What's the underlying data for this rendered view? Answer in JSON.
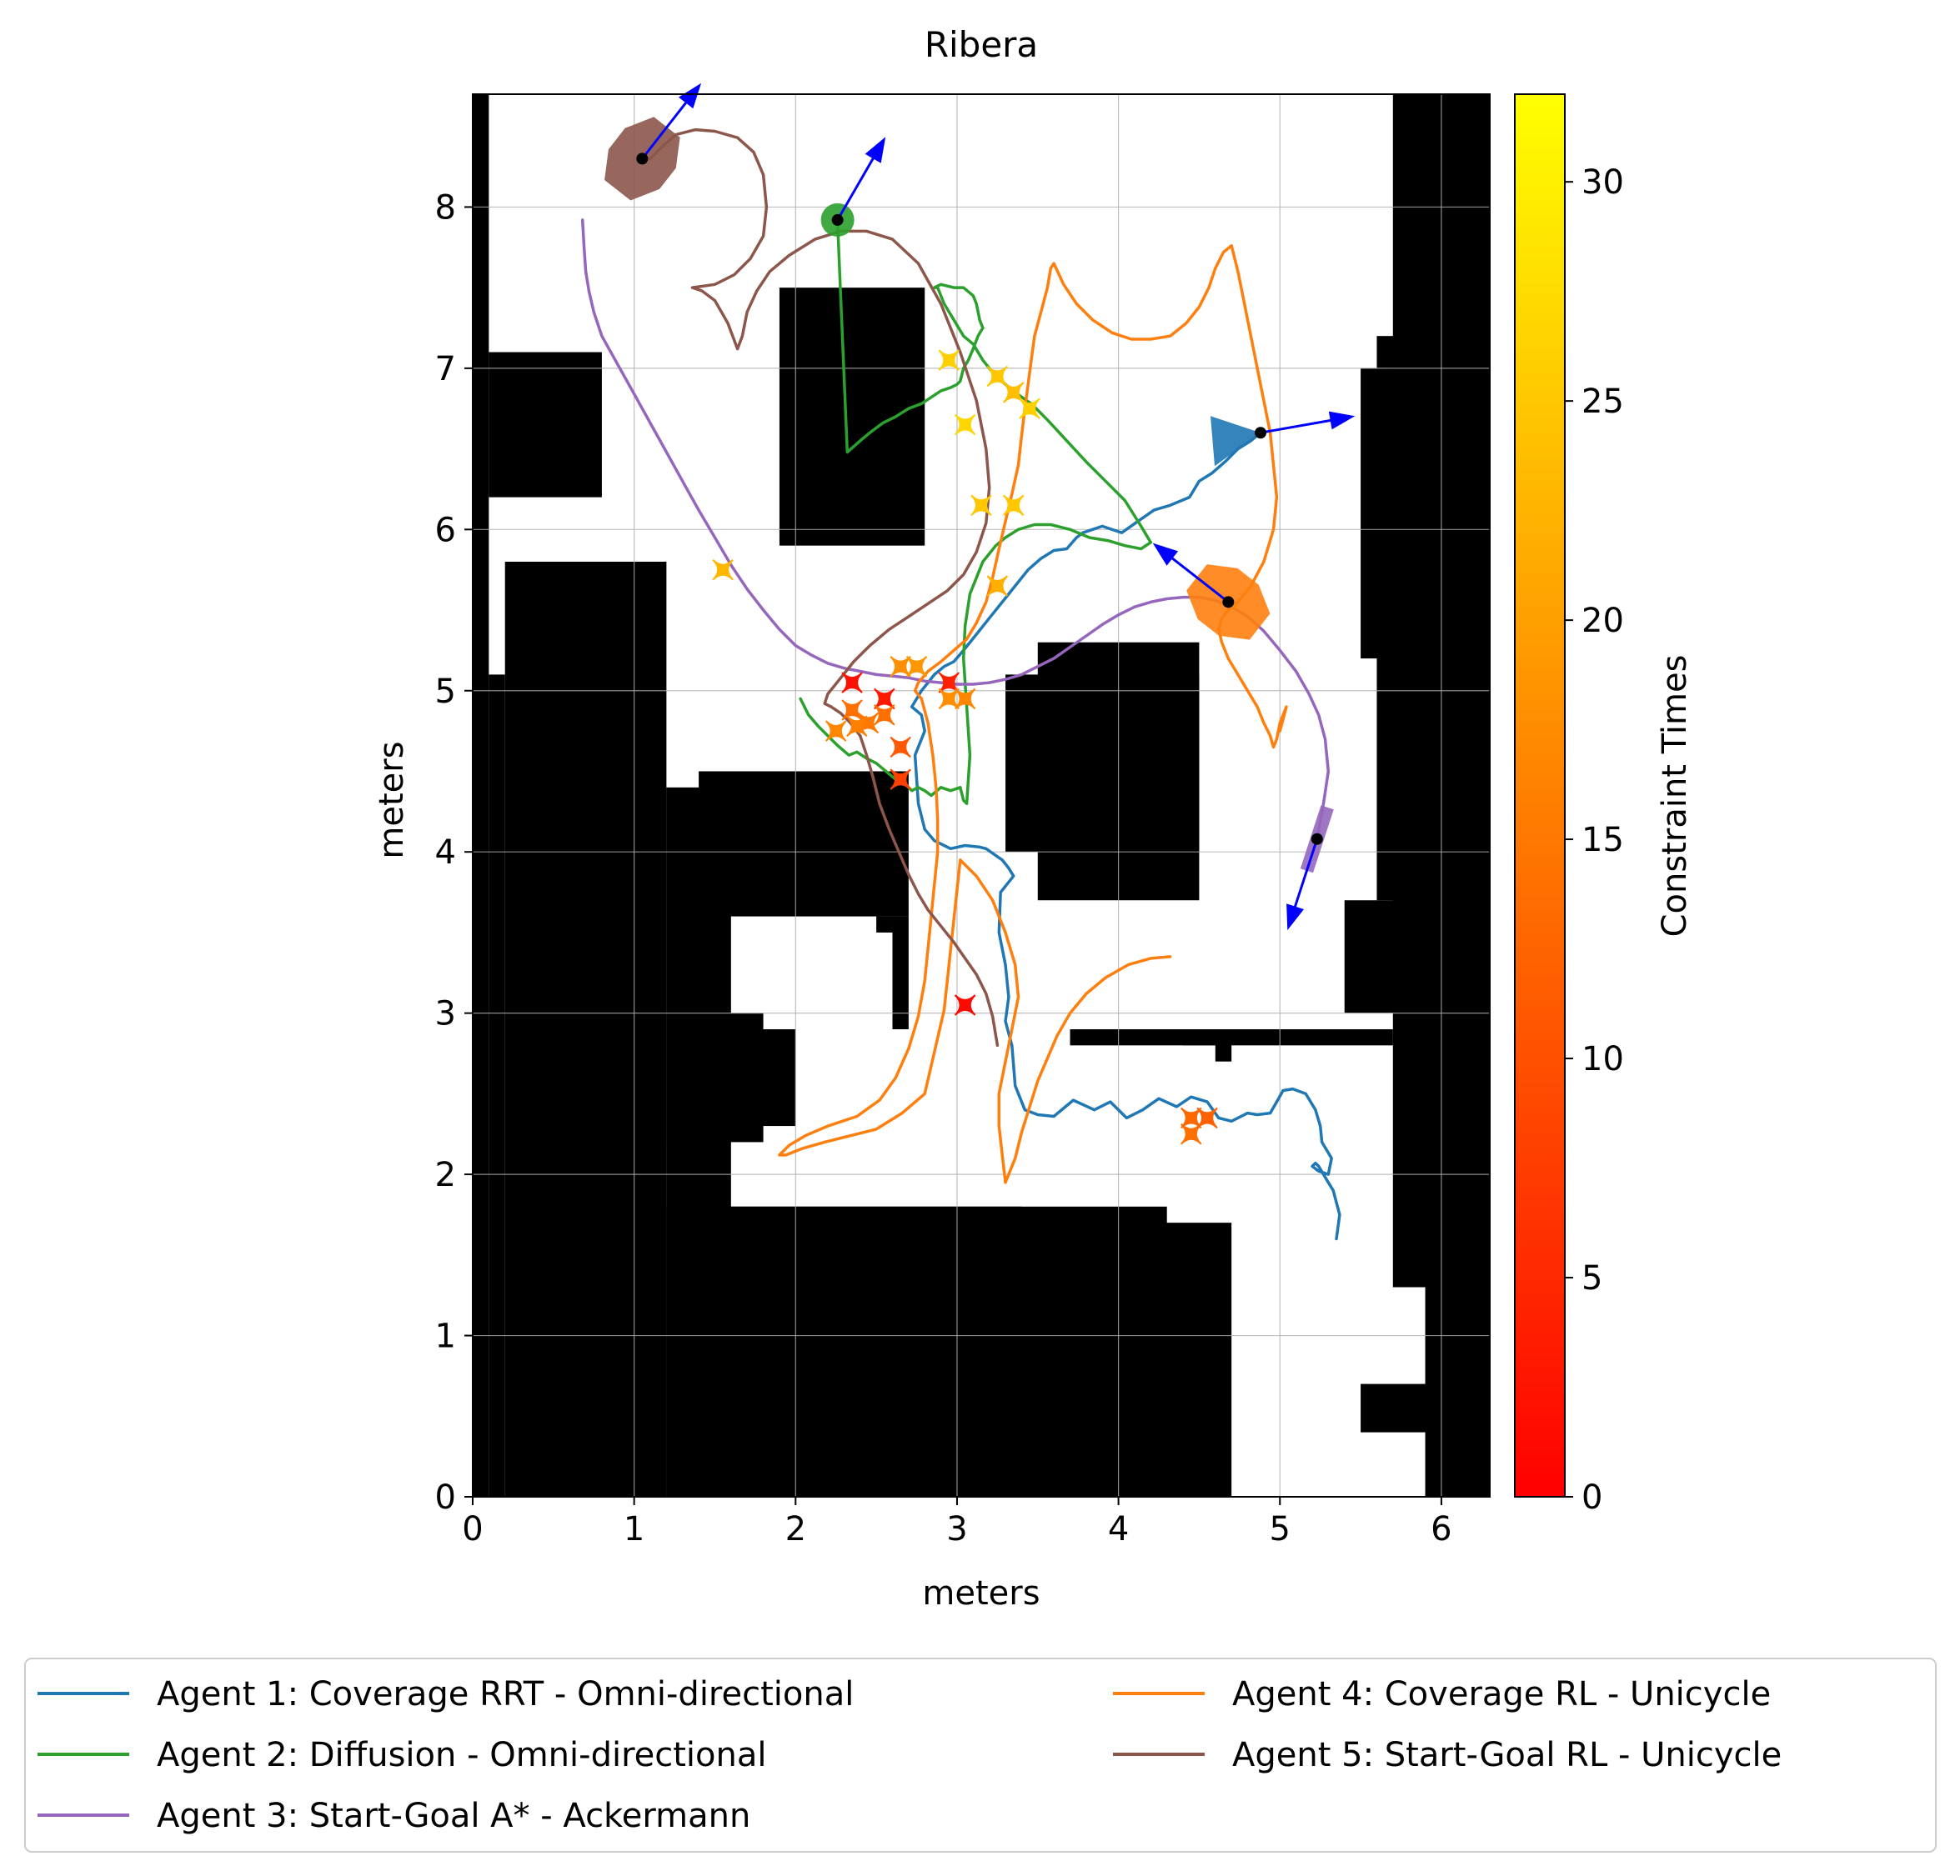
{
  "chart_data": {
    "type": "line",
    "title": "Ribera",
    "xlabel": "meters",
    "ylabel": "meters",
    "xlim": [
      0,
      6.3
    ],
    "ylim": [
      0,
      8.7
    ],
    "xticks": [
      0,
      1,
      2,
      3,
      4,
      5,
      6
    ],
    "yticks": [
      0,
      1,
      2,
      3,
      4,
      5,
      6,
      7,
      8
    ],
    "grid": true,
    "legend_position": "bottom",
    "colorbar": {
      "label": "Constraint Times",
      "range": [
        0,
        32
      ],
      "ticks": [
        0,
        5,
        10,
        15,
        20,
        25,
        30
      ],
      "colors": [
        "#ff0000",
        "#ff8000",
        "#ffff00"
      ]
    },
    "obstacles": [
      [
        0,
        0,
        0.1,
        8.7
      ],
      [
        0.1,
        6.2,
        0.7,
        0.9
      ],
      [
        0.2,
        0,
        1.0,
        5.8
      ],
      [
        0.1,
        0,
        0.1,
        5.1
      ],
      [
        1.2,
        0,
        0.4,
        4.4
      ],
      [
        1.4,
        3.6,
        1.3,
        0.9
      ],
      [
        2.6,
        2.9,
        0.1,
        0.7
      ],
      [
        2.5,
        3.5,
        0.1,
        0.1
      ],
      [
        1.2,
        2.2,
        0.6,
        0.8
      ],
      [
        1.7,
        2.3,
        0.3,
        0.6
      ],
      [
        1.2,
        0,
        2.2,
        1.8
      ],
      [
        1.2,
        0,
        3.1,
        1.8
      ],
      [
        2.9,
        0.2,
        0.2,
        1.4
      ],
      [
        1.9,
        5.9,
        0.9,
        1.6
      ],
      [
        3.3,
        4.0,
        1.2,
        1.1
      ],
      [
        3.5,
        3.7,
        1.0,
        1.6
      ],
      [
        3.8,
        0,
        0.9,
        1.7
      ],
      [
        3.4,
        0,
        1.0,
        0.1
      ],
      [
        3.7,
        2.8,
        0.9,
        0.1
      ],
      [
        4.6,
        2.7,
        0.1,
        0.2
      ],
      [
        4.4,
        2.8,
        1.3,
        0.1
      ],
      [
        5.7,
        1.3,
        0.6,
        7.4
      ],
      [
        5.9,
        0,
        0.4,
        2.0
      ],
      [
        5.5,
        0.4,
        0.5,
        0.3
      ],
      [
        5.4,
        3.0,
        0.4,
        0.7
      ],
      [
        5.6,
        3.7,
        0.3,
        1.8
      ],
      [
        5.5,
        5.2,
        0.4,
        1.8
      ],
      [
        5.6,
        6.1,
        0.3,
        0.7
      ],
      [
        5.8,
        6.8,
        0.3,
        1.6
      ],
      [
        5.8,
        7.3,
        0.5,
        1.4
      ],
      [
        5.6,
        7.0,
        0.4,
        0.2
      ],
      [
        5.9,
        8.4,
        0.4,
        0.3
      ]
    ],
    "series": [
      {
        "name": "Agent 1: Coverage RRT - Omni-directional",
        "color": "#1f77b4",
        "x": [
          5.35,
          5.37,
          5.33,
          5.3,
          5.24,
          5.22,
          5.2,
          5.24,
          5.3,
          5.32,
          5.26,
          5.25,
          5.22,
          5.16,
          5.08,
          5.02,
          4.98,
          4.94,
          4.86,
          4.8,
          4.7,
          4.62,
          4.55,
          4.45,
          4.36,
          4.25,
          4.15,
          4.05,
          3.95,
          3.85,
          3.72,
          3.6,
          3.5,
          3.42,
          3.36,
          3.34,
          3.3,
          3.32,
          3.3,
          3.26,
          3.27,
          3.35,
          3.32,
          3.28,
          3.18,
          3.14,
          3.05,
          2.96,
          2.86,
          2.8,
          2.76,
          2.74,
          2.8,
          2.78,
          2.72,
          2.78,
          2.82,
          2.86,
          2.92,
          2.98,
          3.04,
          3.12,
          3.2,
          3.28,
          3.36,
          3.44,
          3.52,
          3.6,
          3.68,
          3.74,
          3.78,
          3.9,
          4.02,
          4.12,
          4.22,
          4.32,
          4.44,
          4.5,
          4.58,
          4.66,
          4.74,
          4.82,
          4.88
        ],
        "y": [
          1.6,
          1.75,
          1.9,
          1.95,
          2.05,
          2.07,
          2.05,
          2.02,
          2.0,
          2.1,
          2.2,
          2.3,
          2.4,
          2.5,
          2.53,
          2.52,
          2.45,
          2.38,
          2.37,
          2.38,
          2.33,
          2.35,
          2.45,
          2.48,
          2.42,
          2.47,
          2.4,
          2.35,
          2.45,
          2.4,
          2.46,
          2.36,
          2.37,
          2.4,
          2.55,
          2.8,
          2.95,
          3.1,
          3.3,
          3.5,
          3.75,
          3.85,
          3.9,
          3.95,
          4.02,
          4.03,
          4.04,
          4.02,
          4.07,
          4.14,
          4.3,
          4.6,
          4.75,
          4.85,
          4.9,
          5.0,
          5.05,
          5.1,
          5.15,
          5.18,
          5.25,
          5.35,
          5.45,
          5.55,
          5.65,
          5.75,
          5.82,
          5.87,
          5.88,
          5.95,
          5.98,
          6.02,
          5.98,
          6.05,
          6.12,
          6.15,
          6.2,
          6.3,
          6.35,
          6.42,
          6.5,
          6.55,
          6.6
        ]
      },
      {
        "name": "Agent 2: Diffusion - Omni-directional",
        "color": "#2ca02c",
        "x": [
          2.03,
          2.08,
          2.14,
          2.2,
          2.26,
          2.33,
          2.38,
          2.44,
          2.5,
          2.56,
          2.62,
          2.68,
          2.72,
          2.76,
          2.8,
          2.84,
          2.9,
          2.96,
          3.02,
          3.04,
          3.06,
          3.08,
          3.06,
          3.04,
          3.05,
          3.08,
          3.12,
          3.16,
          3.2,
          3.24,
          3.3,
          3.38,
          3.48,
          3.58,
          3.7,
          3.82,
          3.94,
          4.04,
          4.14,
          4.2,
          4.14,
          4.04,
          3.92,
          3.8,
          3.68,
          3.56,
          3.46,
          3.36,
          3.3,
          3.24,
          3.16,
          3.1,
          3.04,
          2.98,
          2.92,
          2.88,
          2.86,
          2.9,
          2.98,
          3.04,
          3.1,
          3.12,
          3.14,
          3.16,
          3.13,
          3.1,
          3.07,
          3.04,
          3.02,
          3.0,
          2.96,
          2.9,
          2.84,
          2.78,
          2.7,
          2.62,
          2.54,
          2.46,
          2.4,
          2.32,
          2.26
        ],
        "y": [
          4.95,
          4.85,
          4.78,
          4.72,
          4.66,
          4.6,
          4.62,
          4.58,
          4.55,
          4.5,
          4.45,
          4.42,
          4.38,
          4.4,
          4.38,
          4.35,
          4.4,
          4.38,
          4.4,
          4.32,
          4.3,
          4.6,
          4.9,
          5.2,
          5.4,
          5.6,
          5.7,
          5.8,
          5.85,
          5.9,
          5.95,
          6.0,
          6.03,
          6.03,
          6.0,
          5.95,
          5.93,
          5.9,
          5.88,
          5.92,
          6.02,
          6.18,
          6.3,
          6.42,
          6.55,
          6.68,
          6.78,
          6.85,
          6.9,
          6.95,
          7.05,
          7.15,
          7.2,
          7.3,
          7.4,
          7.5,
          7.5,
          7.52,
          7.5,
          7.5,
          7.45,
          7.4,
          7.3,
          7.25,
          7.2,
          7.12,
          7.05,
          7.0,
          6.92,
          6.9,
          6.88,
          6.86,
          6.82,
          6.78,
          6.75,
          6.7,
          6.66,
          6.6,
          6.55,
          6.48,
          7.9
        ]
      },
      {
        "name": "Agent 3: Start-Goal A* - Ackermann",
        "color": "#9467bd",
        "x": [
          5.23,
          5.27,
          5.3,
          5.28,
          5.24,
          5.18,
          5.1,
          5.0,
          4.9,
          4.8,
          4.7,
          4.6,
          4.5,
          4.4,
          4.3,
          4.2,
          4.1,
          4.0,
          3.9,
          3.8,
          3.7,
          3.6,
          3.5,
          3.4,
          3.3,
          3.2,
          3.1,
          3.0,
          2.9,
          2.8,
          2.7,
          2.6,
          2.5,
          2.4,
          2.3,
          2.2,
          2.1,
          2.0,
          1.9,
          1.8,
          1.7,
          1.6,
          1.5,
          1.4,
          1.3,
          1.2,
          1.1,
          1.0,
          0.9,
          0.8,
          0.75,
          0.72,
          0.7,
          0.69,
          0.68
        ],
        "y": [
          4.08,
          4.3,
          4.5,
          4.7,
          4.85,
          4.98,
          5.12,
          5.25,
          5.37,
          5.46,
          5.52,
          5.56,
          5.58,
          5.58,
          5.57,
          5.55,
          5.52,
          5.47,
          5.41,
          5.34,
          5.27,
          5.2,
          5.15,
          5.1,
          5.07,
          5.05,
          5.04,
          5.04,
          5.05,
          5.06,
          5.08,
          5.09,
          5.1,
          5.12,
          5.14,
          5.17,
          5.22,
          5.28,
          5.38,
          5.5,
          5.63,
          5.78,
          5.95,
          6.12,
          6.3,
          6.48,
          6.66,
          6.84,
          7.02,
          7.2,
          7.35,
          7.48,
          7.6,
          7.75,
          7.92
        ]
      },
      {
        "name": "Agent 4: Coverage RL - Unicycle",
        "color": "#ff7f0e",
        "x": [
          4.32,
          4.2,
          4.06,
          3.92,
          3.8,
          3.7,
          3.62,
          3.56,
          3.5,
          3.45,
          3.4,
          3.36,
          3.3,
          3.28,
          3.26,
          3.26,
          3.3,
          3.34,
          3.38,
          3.36,
          3.3,
          3.22,
          3.12,
          3.02,
          2.92,
          2.8,
          2.66,
          2.5,
          2.34,
          2.18,
          2.04,
          1.94,
          1.9,
          1.96,
          2.06,
          2.2,
          2.38,
          2.52,
          2.62,
          2.7,
          2.76,
          2.8,
          2.82,
          2.84,
          2.86,
          2.88,
          2.88,
          2.87,
          2.85,
          2.82,
          2.78,
          2.74,
          2.76,
          2.82,
          2.9,
          2.98,
          3.06,
          3.12,
          3.18,
          3.22,
          3.26,
          3.3,
          3.34,
          3.38,
          3.4,
          3.42,
          3.44,
          3.46,
          3.48,
          3.52,
          3.56,
          3.58,
          3.6,
          3.66,
          3.74,
          3.84,
          3.96,
          4.08,
          4.2,
          4.32,
          4.42,
          4.5,
          4.56,
          4.6,
          4.65,
          4.7,
          4.74,
          4.78,
          4.82,
          4.86,
          4.9,
          4.94,
          4.96,
          4.98,
          4.96,
          4.9,
          4.82,
          4.74,
          4.68,
          4.64,
          4.62,
          4.64,
          4.68,
          4.74,
          4.8,
          4.86,
          4.9,
          4.94,
          4.96,
          4.98,
          5.0,
          5.04,
          5.0
        ],
        "y": [
          3.35,
          3.34,
          3.3,
          3.22,
          3.12,
          3.0,
          2.86,
          2.72,
          2.58,
          2.42,
          2.26,
          2.1,
          1.95,
          2.12,
          2.3,
          2.5,
          2.7,
          2.9,
          3.1,
          3.3,
          3.5,
          3.7,
          3.85,
          3.95,
          3.02,
          2.5,
          2.38,
          2.28,
          2.24,
          2.2,
          2.16,
          2.12,
          2.12,
          2.18,
          2.24,
          2.3,
          2.36,
          2.46,
          2.6,
          2.78,
          2.98,
          3.2,
          3.4,
          3.6,
          3.8,
          4.0,
          4.2,
          4.4,
          4.6,
          4.8,
          4.95,
          5.0,
          5.05,
          5.12,
          5.18,
          5.25,
          5.32,
          5.42,
          5.55,
          5.7,
          5.88,
          6.05,
          6.22,
          6.4,
          6.58,
          6.75,
          6.9,
          7.05,
          7.2,
          7.35,
          7.5,
          7.62,
          7.65,
          7.52,
          7.4,
          7.3,
          7.22,
          7.18,
          7.18,
          7.2,
          7.28,
          7.38,
          7.5,
          7.62,
          7.72,
          7.76,
          7.6,
          7.4,
          7.2,
          7.0,
          6.8,
          6.6,
          6.4,
          6.2,
          6.0,
          5.8,
          5.65,
          5.55,
          5.5,
          5.45,
          5.38,
          5.3,
          5.2,
          5.1,
          5.0,
          4.9,
          4.8,
          4.72,
          4.65,
          4.7,
          4.8,
          4.9,
          4.75
        ]
      },
      {
        "name": "Agent 5: Start-Goal RL - Unicycle",
        "color": "#8c564b",
        "x": [
          3.25,
          3.22,
          3.18,
          3.12,
          3.05,
          2.98,
          2.9,
          2.82,
          2.76,
          2.7,
          2.64,
          2.58,
          2.52,
          2.48,
          2.44,
          2.4,
          2.34,
          2.28,
          2.22,
          2.18,
          2.2,
          2.28,
          2.36,
          2.46,
          2.58,
          2.7,
          2.82,
          2.94,
          3.04,
          3.12,
          3.18,
          3.2,
          3.18,
          3.12,
          3.02,
          2.9,
          2.76,
          2.6,
          2.44,
          2.28,
          2.12,
          1.96,
          1.84,
          1.76,
          1.7,
          1.67,
          1.64,
          1.58,
          1.5,
          1.42,
          1.36,
          1.5,
          1.62,
          1.72,
          1.8,
          1.82,
          1.8,
          1.74,
          1.64,
          1.5,
          1.38,
          1.26,
          1.18,
          1.1,
          1.06
        ],
        "y": [
          2.8,
          2.98,
          3.12,
          3.24,
          3.34,
          3.44,
          3.54,
          3.64,
          3.74,
          3.86,
          4.0,
          4.14,
          4.3,
          4.46,
          4.6,
          4.72,
          4.8,
          4.86,
          4.9,
          4.92,
          4.98,
          5.08,
          5.18,
          5.28,
          5.38,
          5.46,
          5.54,
          5.62,
          5.72,
          5.86,
          6.04,
          6.26,
          6.5,
          6.8,
          7.1,
          7.4,
          7.65,
          7.8,
          7.85,
          7.85,
          7.8,
          7.7,
          7.6,
          7.48,
          7.35,
          7.2,
          7.12,
          7.28,
          7.42,
          7.48,
          7.5,
          7.52,
          7.58,
          7.68,
          7.82,
          8.0,
          8.2,
          8.34,
          8.43,
          8.47,
          8.48,
          8.45,
          8.38,
          8.3,
          8.3
        ]
      }
    ],
    "constraints": [
      {
        "x": 2.35,
        "y": 5.05,
        "t": 2
      },
      {
        "x": 2.55,
        "y": 4.95,
        "t": 3
      },
      {
        "x": 3.05,
        "y": 3.05,
        "t": 1
      },
      {
        "x": 2.95,
        "y": 5.05,
        "t": 4
      },
      {
        "x": 2.65,
        "y": 4.45,
        "t": 8
      },
      {
        "x": 2.65,
        "y": 4.65,
        "t": 11
      },
      {
        "x": 2.35,
        "y": 4.88,
        "t": 14
      },
      {
        "x": 2.45,
        "y": 4.8,
        "t": 15
      },
      {
        "x": 2.55,
        "y": 4.85,
        "t": 14
      },
      {
        "x": 2.25,
        "y": 4.75,
        "t": 17
      },
      {
        "x": 2.38,
        "y": 4.78,
        "t": 16
      },
      {
        "x": 2.65,
        "y": 5.15,
        "t": 18
      },
      {
        "x": 2.75,
        "y": 5.15,
        "t": 19
      },
      {
        "x": 2.95,
        "y": 4.95,
        "t": 18
      },
      {
        "x": 3.05,
        "y": 4.95,
        "t": 17
      },
      {
        "x": 4.45,
        "y": 2.25,
        "t": 14
      },
      {
        "x": 4.45,
        "y": 2.35,
        "t": 13
      },
      {
        "x": 4.55,
        "y": 2.35,
        "t": 12
      },
      {
        "x": 3.25,
        "y": 5.65,
        "t": 22
      },
      {
        "x": 1.55,
        "y": 5.75,
        "t": 23
      },
      {
        "x": 3.15,
        "y": 6.15,
        "t": 25
      },
      {
        "x": 3.35,
        "y": 6.15,
        "t": 25
      },
      {
        "x": 3.05,
        "y": 6.65,
        "t": 27
      },
      {
        "x": 2.95,
        "y": 7.05,
        "t": 26
      },
      {
        "x": 3.25,
        "y": 6.95,
        "t": 25
      },
      {
        "x": 3.35,
        "y": 6.85,
        "t": 24
      },
      {
        "x": 3.45,
        "y": 6.75,
        "t": 26
      }
    ],
    "agents": [
      {
        "x": 4.88,
        "y": 6.6,
        "heading_deg": 10,
        "footprint": "triangle",
        "color": "#1f77b4"
      },
      {
        "x": 2.26,
        "y": 7.92,
        "heading_deg": 60,
        "footprint": "circle",
        "color": "#2ca02c"
      },
      {
        "x": 5.23,
        "y": 4.08,
        "heading_deg": 252,
        "footprint": "bar",
        "color": "#9467bd"
      },
      {
        "x": 4.68,
        "y": 5.55,
        "heading_deg": 142,
        "footprint": "octagon",
        "color": "#ff7f0e"
      },
      {
        "x": 1.05,
        "y": 8.3,
        "heading_deg": 52,
        "footprint": "octagon",
        "color": "#8c564b"
      }
    ],
    "arrow_color": "#0000ff"
  }
}
